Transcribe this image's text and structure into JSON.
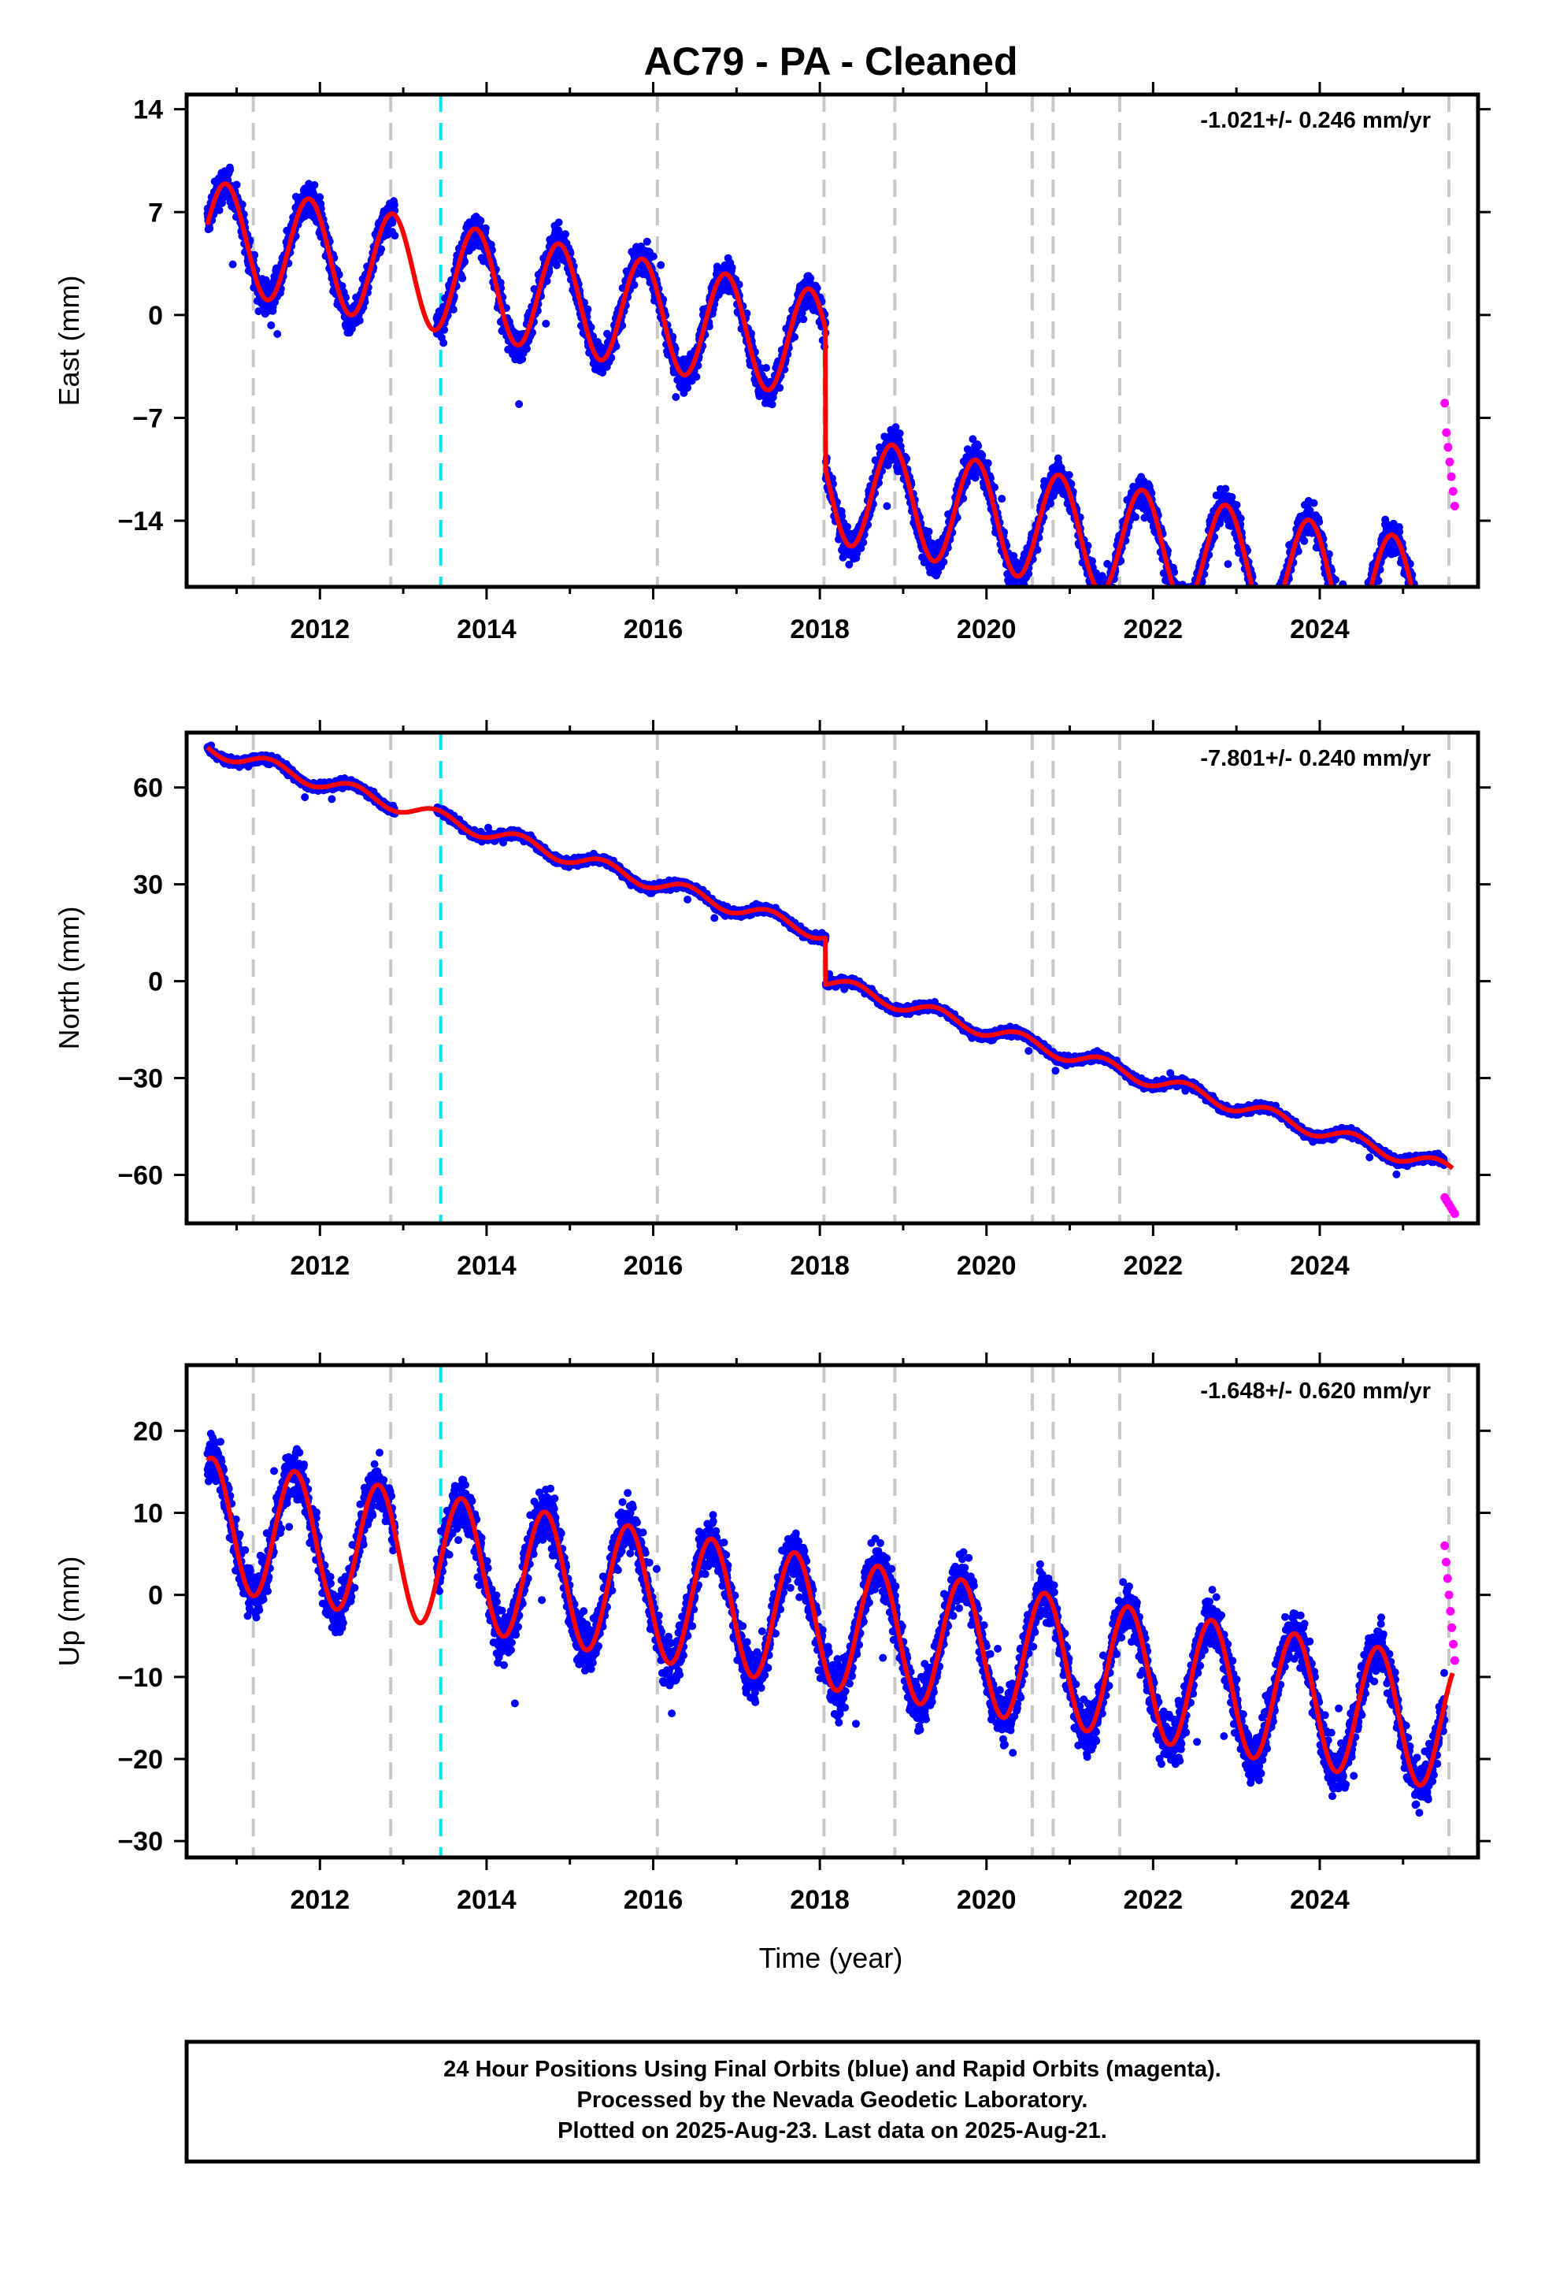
{
  "title": "AC79  - PA - Cleaned",
  "xlabel": "Time (year)",
  "footer": [
    "24 Hour Positions Using Final Orbits (blue) and Rapid Orbits (magenta).",
    "Processed by the Nevada Geodetic Laboratory.",
    "Plotted on 2025-Aug-23. Last data on 2025-Aug-21."
  ],
  "colors": {
    "final_orbits": "#0000ff",
    "rapid_orbits": "#ff00ff",
    "model_fit": "#ff0000",
    "equipment_change": "#c8c8c8",
    "earthquake_event": "#00e5ee"
  },
  "chart_data": [
    {
      "type": "scatter",
      "panel": "east",
      "ylabel": "East (mm)",
      "rate_label": "-1.021+/- 0.246 mm/yr",
      "rate_mm_yr": -1.021,
      "rate_sigma_mm_yr": 0.246,
      "xlim": [
        2010.4,
        2025.9
      ],
      "ylim": [
        -18.5,
        15
      ],
      "xticks": [
        2012,
        2014,
        2016,
        2018,
        2020,
        2022,
        2024
      ],
      "yticks": [
        -14,
        -7,
        0,
        7,
        14
      ],
      "gray_dashed_lines": [
        2011.2,
        2012.85,
        2020.55,
        2020.8,
        2021.6,
        2025.55
      ],
      "gray_dashed_lines_through_plot": [
        2016.05,
        2018.05,
        2018.9
      ],
      "cyan_dashed_lines": [
        2013.45
      ],
      "fit_model": {
        "offset_2010_7": 5.4,
        "trend_mm_yr": -1.021,
        "annual_amplitude": 3.7,
        "annual_peak_fraction": 0.87,
        "steps": [
          {
            "year": 2018.07,
            "size": -9.6
          }
        ]
      },
      "series": [
        {
          "name": "final orbits",
          "color": "#0000ff",
          "x_range": [
            2010.65,
            2025.5
          ],
          "gap": [
            2012.9,
            2013.4
          ],
          "scatter_mm": 1.3
        },
        {
          "name": "rapid orbits",
          "color": "#ff00ff",
          "x_range": [
            2025.5,
            2025.62
          ],
          "y_values": [
            -6,
            -8,
            -9,
            -10,
            -11,
            -12,
            -13
          ]
        }
      ]
    },
    {
      "type": "scatter",
      "panel": "north",
      "ylabel": "North (mm)",
      "rate_label": "-7.801+/- 0.240 mm/yr",
      "rate_mm_yr": -7.801,
      "rate_sigma_mm_yr": 0.24,
      "xlim": [
        2010.4,
        2025.9
      ],
      "ylim": [
        -75,
        77
      ],
      "xticks": [
        2012,
        2014,
        2016,
        2018,
        2020,
        2022,
        2024
      ],
      "yticks": [
        -60,
        -30,
        0,
        30,
        60
      ],
      "gray_dashed_lines": [
        2011.2,
        2012.85,
        2016.05,
        2018.05,
        2018.9,
        2020.55,
        2020.8,
        2021.6,
        2025.55
      ],
      "cyan_dashed_lines": [
        2013.45
      ],
      "fit_model": {
        "offset_2010_7": 72.0,
        "trend_mm_yr": -7.801,
        "annual_amplitude": 2.2,
        "annual_peak_fraction": 0.4,
        "steps": [
          {
            "year": 2018.07,
            "size": -14.5
          }
        ]
      },
      "series": [
        {
          "name": "final orbits",
          "color": "#0000ff",
          "x_range": [
            2010.65,
            2025.5
          ],
          "gap": [
            2012.9,
            2013.4
          ],
          "scatter_mm": 1.4
        },
        {
          "name": "rapid orbits",
          "color": "#ff00ff",
          "x_range": [
            2025.5,
            2025.62
          ],
          "y_values": [
            -67,
            -68,
            -69,
            -70,
            -71,
            -72
          ]
        }
      ]
    },
    {
      "type": "scatter",
      "panel": "up",
      "ylabel": "Up (mm)",
      "rate_label": "-1.648+/- 0.620 mm/yr",
      "rate_mm_yr": -1.648,
      "rate_sigma_mm_yr": 0.62,
      "xlim": [
        2010.4,
        2025.9
      ],
      "ylim": [
        -32,
        28
      ],
      "xticks": [
        2012,
        2014,
        2016,
        2018,
        2020,
        2022,
        2024
      ],
      "yticks": [
        -30,
        -20,
        -10,
        0,
        10,
        20
      ],
      "gray_dashed_lines": [
        2011.2,
        2012.85,
        2016.05,
        2018.05,
        2018.9,
        2020.55,
        2020.8,
        2021.6,
        2025.55
      ],
      "cyan_dashed_lines": [
        2013.45
      ],
      "fit_model": {
        "offset_2010_7": 8.7,
        "trend_mm_yr": -1.648,
        "annual_amplitude": 8.0,
        "annual_peak_fraction": 0.7,
        "steps": []
      },
      "series": [
        {
          "name": "final orbits",
          "color": "#0000ff",
          "x_range": [
            2010.65,
            2025.5
          ],
          "gap": [
            2012.9,
            2013.4
          ],
          "scatter_mm": 3.5
        },
        {
          "name": "rapid orbits",
          "color": "#ff00ff",
          "x_range": [
            2025.5,
            2025.62
          ],
          "y_values": [
            6,
            4,
            2,
            0,
            -2,
            -4,
            -6,
            -8
          ]
        }
      ]
    }
  ]
}
